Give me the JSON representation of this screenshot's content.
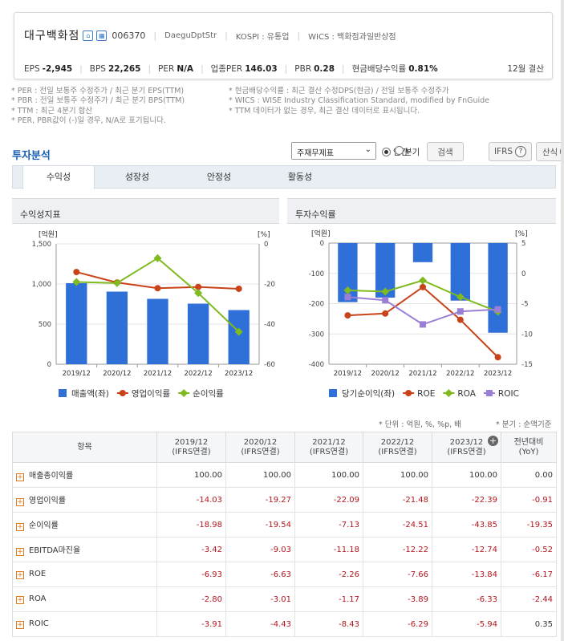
{
  "company": {
    "name": "대구백화점",
    "code": "006370",
    "eng": "DaeguDptStr",
    "market": "KOSPI : 유통업",
    "wics": "WICS : 백화점과일반상점"
  },
  "stats": [
    {
      "label": "EPS",
      "value": "-2,945"
    },
    {
      "label": "BPS",
      "value": "22,265"
    },
    {
      "label": "PER",
      "value": "N/A"
    },
    {
      "label": "업종PER",
      "value": "146.03"
    },
    {
      "label": "PBR",
      "value": "0.28"
    },
    {
      "label": "현금배당수익률",
      "value": "0.81%"
    }
  ],
  "fiscal_close": "12월 결산",
  "notes_left": [
    "* PER : 전일 보통주 수정주가 / 최근 분기 EPS(TTM)",
    "* PBR : 전일 보통주 수정주가 / 최근 분기 BPS(TTM)",
    "* TTM : 최근 4분기 합산",
    "* PER, PBR값이 (-)일 경우, N/A로 표기됩니다."
  ],
  "notes_right": [
    "* 현금배당수익률 : 최근 결산 수정DPS(현금) / 전일 보통주 수정주가",
    "* WICS : WISE Industry Classification Standard, modified by FnGuide",
    "* TTM 데이터가 없는 경우, 최근 결산 데이터로 표시됩니다."
  ],
  "section_title": "투자분석",
  "controls": {
    "select": "주재무제표",
    "radio_annual": "연간",
    "radio_quarter": "분기",
    "search": "검색",
    "ifrs": "IFRS",
    "formula": "산식"
  },
  "tabs": [
    "수익성",
    "성장성",
    "안정성",
    "활동성"
  ],
  "panel1_title": "수익성지표",
  "panel2_title": "투자수익률",
  "chart_data": [
    {
      "type": "bar",
      "categories": [
        "2019/12",
        "2020/12",
        "2021/12",
        "2022/12",
        "2023/12"
      ],
      "y_left_label": "[억원]",
      "y_right_label": "[%]",
      "ylim_left": [
        0,
        1500
      ],
      "ylim_right": [
        -60,
        0
      ],
      "left_ticks": [
        "1,500",
        "1,000",
        "500",
        "0"
      ],
      "right_ticks": [
        "0",
        "-20",
        "-40",
        "-60"
      ],
      "series": [
        {
          "name": "매출액(좌)",
          "kind": "bar",
          "axis": "left",
          "color": "#2f6fd8",
          "values": [
            1010,
            905,
            815,
            755,
            675
          ]
        },
        {
          "name": "영업이익률",
          "kind": "line",
          "axis": "right",
          "color": "#c9431a",
          "values": [
            -14.03,
            -19.27,
            -22.09,
            -21.48,
            -22.39
          ]
        },
        {
          "name": "순이익률",
          "kind": "line",
          "axis": "right",
          "color": "#7fba1f",
          "values": [
            -18.98,
            -19.54,
            -7.13,
            -24.51,
            -43.85
          ]
        }
      ]
    },
    {
      "type": "bar",
      "categories": [
        "2019/12",
        "2020/12",
        "2021/12",
        "2022/12",
        "2023/12"
      ],
      "y_left_label": "[억원]",
      "y_right_label": "[%]",
      "ylim_left": [
        -400,
        0
      ],
      "ylim_right": [
        -15,
        5
      ],
      "left_ticks": [
        "0",
        "-100",
        "-200",
        "-300",
        "-400"
      ],
      "right_ticks": [
        "5",
        "0",
        "-5",
        "-10",
        "-15"
      ],
      "series": [
        {
          "name": "당기순이익(좌)",
          "kind": "bar",
          "axis": "left",
          "color": "#2f6fd8",
          "values": [
            -195,
            -180,
            -63,
            -190,
            -296
          ]
        },
        {
          "name": "ROE",
          "kind": "line",
          "axis": "right",
          "color": "#c9431a",
          "values": [
            -6.93,
            -6.63,
            -2.26,
            -7.66,
            -13.84
          ]
        },
        {
          "name": "ROA",
          "kind": "line",
          "axis": "right",
          "color": "#7fba1f",
          "values": [
            -2.8,
            -3.01,
            -1.17,
            -3.89,
            -6.33
          ]
        },
        {
          "name": "ROIC",
          "kind": "line",
          "axis": "right",
          "color": "#9b7fd6",
          "marker": "square",
          "values": [
            -3.91,
            -4.43,
            -8.43,
            -6.29,
            -5.94
          ]
        }
      ]
    }
  ],
  "units_note": "* 단위 : 억원, %, %p, 배",
  "basis_note": "* 분기 : 순액기준",
  "table": {
    "headers": [
      "항목",
      "2019/12\n(IFRS연결)",
      "2020/12\n(IFRS연결)",
      "2021/12\n(IFRS연결)",
      "2022/12\n(IFRS연결)",
      "2023/12\n(IFRS연결)",
      "전년대비\n(YoY)"
    ],
    "rows": [
      {
        "label": "매출총이익률",
        "values": [
          "100.00",
          "100.00",
          "100.00",
          "100.00",
          "100.00",
          "0.00"
        ]
      },
      {
        "label": "영업이익률",
        "values": [
          "-14.03",
          "-19.27",
          "-22.09",
          "-21.48",
          "-22.39",
          "-0.91"
        ]
      },
      {
        "label": "순이익률",
        "values": [
          "-18.98",
          "-19.54",
          "-7.13",
          "-24.51",
          "-43.85",
          "-19.35"
        ]
      },
      {
        "label": "EBITDA마진율",
        "values": [
          "-3.42",
          "-9.03",
          "-11.18",
          "-12.22",
          "-12.74",
          "-0.52"
        ]
      },
      {
        "label": "ROE",
        "values": [
          "-6.93",
          "-6.63",
          "-2.26",
          "-7.66",
          "-13.84",
          "-6.17"
        ]
      },
      {
        "label": "ROA",
        "values": [
          "-2.80",
          "-3.01",
          "-1.17",
          "-3.89",
          "-6.33",
          "-2.44"
        ]
      },
      {
        "label": "ROIC",
        "values": [
          "-3.91",
          "-4.43",
          "-8.43",
          "-6.29",
          "-5.94",
          "0.35"
        ]
      }
    ]
  }
}
